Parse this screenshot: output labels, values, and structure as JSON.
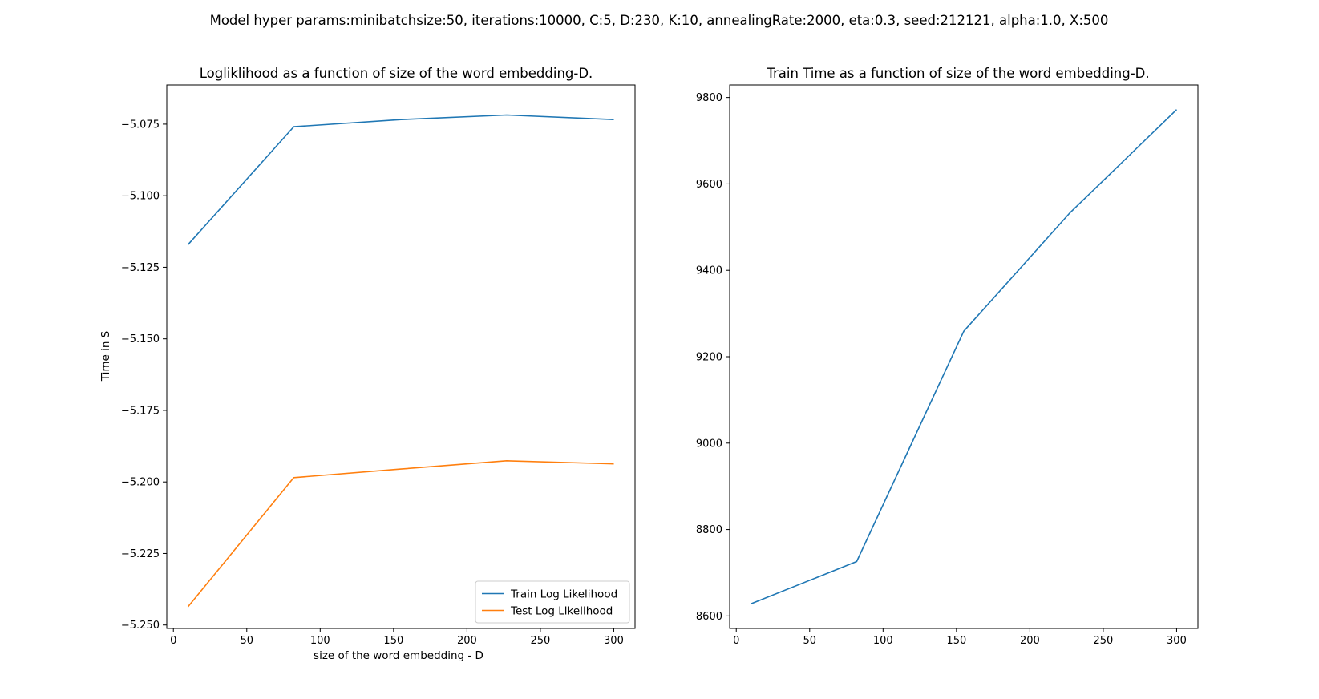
{
  "figure": {
    "suptitle": "Model hyper params:minibatchsize:50, iterations:10000, C:5, D:230, K:10, annealingRate:2000, eta:0.3, seed:212121, alpha:1.0, X:500"
  },
  "chart_data": [
    {
      "type": "line",
      "title": "Logliklihood as a function of size of the word embedding-D.",
      "xlabel": "size of the word embedding - D",
      "ylabel": "Time in S",
      "xlim": [
        -4.5,
        314.5
      ],
      "ylim": [
        -5.2512,
        -5.0613
      ],
      "xticks": [
        0,
        50,
        100,
        150,
        200,
        250,
        300
      ],
      "xtick_labels": [
        "0",
        "50",
        "100",
        "150",
        "200",
        "250",
        "300"
      ],
      "yticks": [
        -5.25,
        -5.225,
        -5.2,
        -5.175,
        -5.15,
        -5.125,
        -5.1,
        -5.075
      ],
      "ytick_labels": [
        "−5.250",
        "−5.225",
        "−5.200",
        "−5.175",
        "−5.150",
        "−5.125",
        "−5.100",
        "−5.075"
      ],
      "grid": false,
      "legend": "lower right",
      "x": [
        10,
        82,
        155,
        227,
        300
      ],
      "series": [
        {
          "name": "Train Log Likelihood",
          "color": "#1f77b4",
          "values": [
            -5.1171,
            -5.0759,
            -5.0734,
            -5.0718,
            -5.0734
          ]
        },
        {
          "name": "Test Log Likelihood",
          "color": "#ff7f0e",
          "values": [
            -5.2436,
            -5.1985,
            -5.1955,
            -5.1926,
            -5.1937
          ]
        }
      ]
    },
    {
      "type": "line",
      "title": "Train Time as a function of size of the word embedding-D.",
      "xlabel": "",
      "ylabel": "",
      "xlim": [
        -4.5,
        314.5
      ],
      "ylim": [
        8571,
        9829
      ],
      "xticks": [
        0,
        50,
        100,
        150,
        200,
        250,
        300
      ],
      "xtick_labels": [
        "0",
        "50",
        "100",
        "150",
        "200",
        "250",
        "300"
      ],
      "yticks": [
        8600,
        8800,
        9000,
        9200,
        9400,
        9600,
        9800
      ],
      "ytick_labels": [
        "8600",
        "8800",
        "9000",
        "9200",
        "9400",
        "9600",
        "9800"
      ],
      "grid": false,
      "legend": "none",
      "x": [
        10,
        82,
        155,
        227,
        300
      ],
      "series": [
        {
          "color": "#1f77b4",
          "values": [
            8628,
            8726,
            9259,
            9532,
            9772
          ]
        }
      ]
    }
  ]
}
